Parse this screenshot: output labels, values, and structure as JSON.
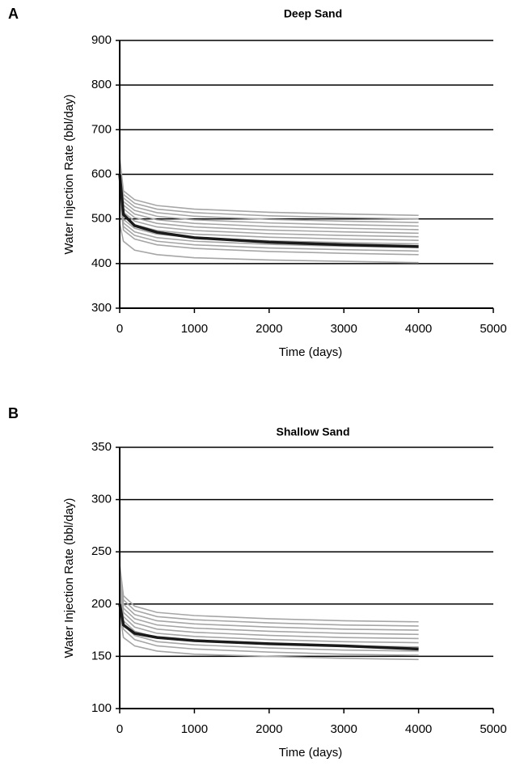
{
  "chart_data": [
    {
      "type": "line",
      "panel": "A",
      "title": "Deep Sand",
      "x_label": "Time (days)",
      "y_label": "Water Injection Rate (bbl/day)",
      "x": [
        0,
        50,
        200,
        500,
        1000,
        2000,
        3000,
        4000
      ],
      "series": [
        {
          "color": "#a6a6a6",
          "values": [
            638,
            563,
            543,
            530,
            522,
            515,
            511,
            508
          ]
        },
        {
          "color": "#a6a6a6",
          "values": [
            630,
            555,
            535,
            522,
            514,
            507,
            503,
            500
          ]
        },
        {
          "color": "#a6a6a6",
          "values": [
            622,
            547,
            527,
            514,
            506,
            499,
            495,
            492
          ]
        },
        {
          "color": "#a6a6a6",
          "values": [
            614,
            539,
            519,
            506,
            498,
            491,
            487,
            484
          ]
        },
        {
          "color": "#a6a6a6",
          "values": [
            606,
            531,
            511,
            498,
            490,
            483,
            479,
            476
          ]
        },
        {
          "color": "#a6a6a6",
          "values": [
            598,
            523,
            503,
            490,
            482,
            475,
            471,
            468
          ]
        },
        {
          "color": "#a6a6a6",
          "values": [
            590,
            515,
            495,
            482,
            474,
            467,
            463,
            460
          ]
        },
        {
          "color": "#a6a6a6",
          "values": [
            582,
            507,
            487,
            474,
            466,
            459,
            455,
            452
          ]
        },
        {
          "color": "#a6a6a6",
          "values": [
            574,
            499,
            479,
            466,
            458,
            451,
            447,
            444
          ]
        },
        {
          "color": "#a6a6a6",
          "values": [
            566,
            491,
            471,
            458,
            450,
            443,
            439,
            436
          ]
        },
        {
          "color": "#a6a6a6",
          "values": [
            558,
            483,
            463,
            450,
            442,
            435,
            431,
            428
          ]
        },
        {
          "color": "#a6a6a6",
          "values": [
            550,
            475,
            455,
            442,
            434,
            427,
            423,
            420
          ]
        },
        {
          "color": "#a6a6a6",
          "values": [
            490,
            450,
            430,
            420,
            413,
            408,
            405,
            402
          ]
        },
        {
          "color": "#1a1a1a",
          "values": [
            600,
            510,
            485,
            470,
            458,
            448,
            442,
            438
          ]
        }
      ],
      "xlim": [
        0,
        5000
      ],
      "xticks": [
        0,
        1000,
        2000,
        3000,
        4000,
        5000
      ],
      "ylim": [
        300,
        900
      ],
      "yticks": [
        300,
        400,
        500,
        600,
        700,
        800,
        900
      ],
      "grid": true
    },
    {
      "type": "line",
      "panel": "B",
      "title": "Shallow Sand",
      "x_label": "Time (days)",
      "y_label": "Water Injection Rate (bbl/day)",
      "x": [
        0,
        50,
        200,
        500,
        1000,
        2000,
        3000,
        4000
      ],
      "series": [
        {
          "color": "#a6a6a6",
          "values": [
            238,
            208,
            198,
            192,
            189,
            186,
            184,
            183
          ]
        },
        {
          "color": "#a6a6a6",
          "values": [
            234,
            204,
            194,
            188,
            185,
            182,
            180,
            179
          ]
        },
        {
          "color": "#a6a6a6",
          "values": [
            230,
            200,
            190,
            184,
            181,
            178,
            176,
            175
          ]
        },
        {
          "color": "#a6a6a6",
          "values": [
            226,
            196,
            186,
            180,
            177,
            174,
            172,
            171
          ]
        },
        {
          "color": "#a6a6a6",
          "values": [
            222,
            192,
            182,
            176,
            173,
            170,
            168,
            167
          ]
        },
        {
          "color": "#a6a6a6",
          "values": [
            218,
            188,
            178,
            172,
            169,
            166,
            164,
            163
          ]
        },
        {
          "color": "#a6a6a6",
          "values": [
            214,
            184,
            174,
            168,
            165,
            162,
            160,
            159
          ]
        },
        {
          "color": "#a6a6a6",
          "values": [
            210,
            180,
            170,
            164,
            161,
            158,
            156,
            155
          ]
        },
        {
          "color": "#a6a6a6",
          "values": [
            206,
            176,
            166,
            160,
            157,
            154,
            152,
            151
          ]
        },
        {
          "color": "#a6a6a6",
          "values": [
            190,
            168,
            160,
            155,
            152,
            150,
            148,
            147
          ]
        },
        {
          "color": "#1a1a1a",
          "values": [
            200,
            180,
            172,
            168,
            165,
            162,
            160,
            157
          ]
        }
      ],
      "xlim": [
        0,
        5000
      ],
      "xticks": [
        0,
        1000,
        2000,
        3000,
        4000,
        5000
      ],
      "ylim": [
        100,
        350
      ],
      "yticks": [
        100,
        150,
        200,
        250,
        300,
        350
      ],
      "grid": true
    }
  ]
}
